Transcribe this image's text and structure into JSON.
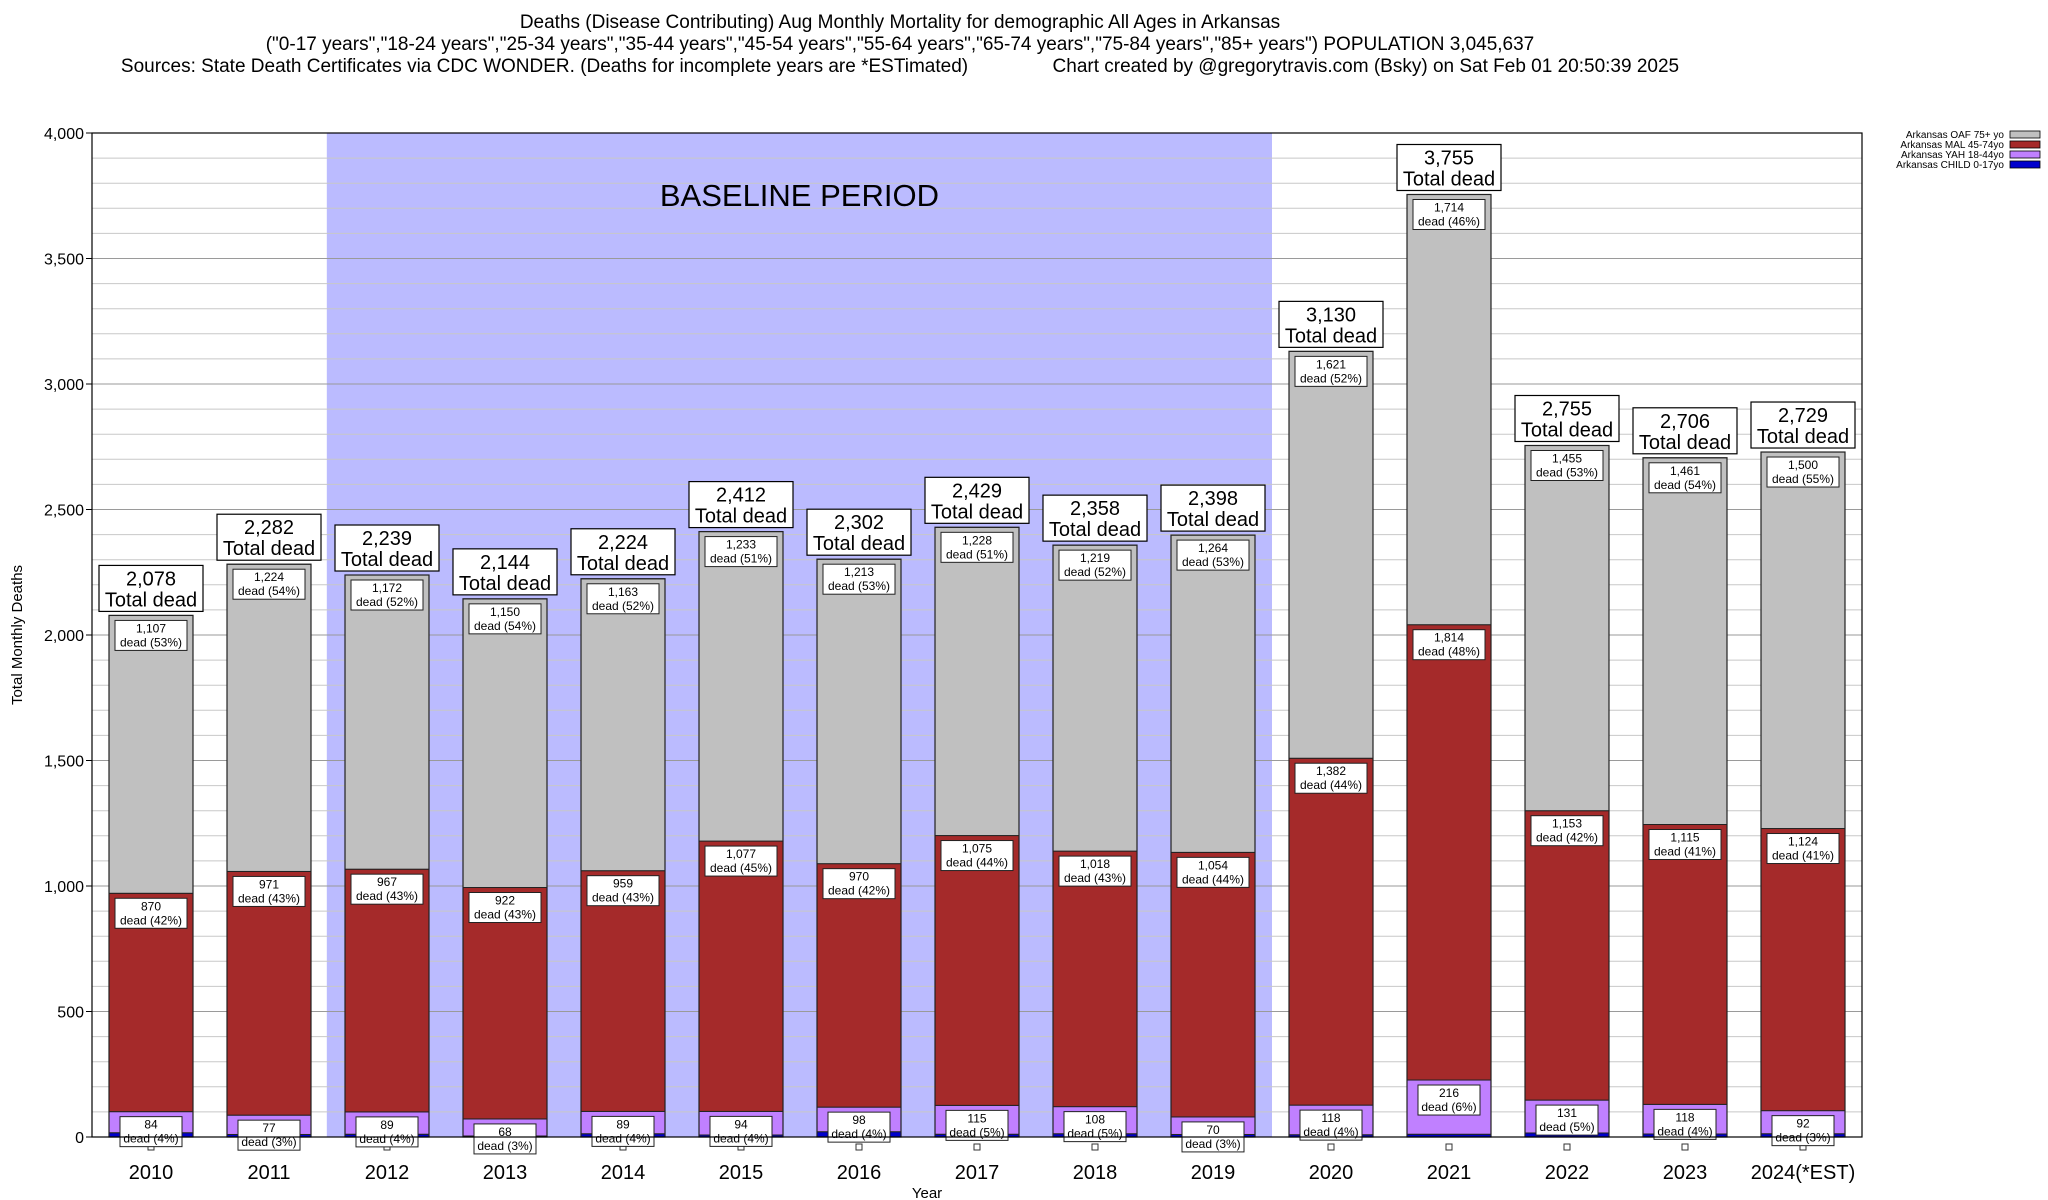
{
  "chart_data": {
    "type": "bar",
    "stacked": true,
    "title_lines": [
      "Deaths (Disease Contributing) Aug Monthly Mortality for demographic All Ages in Arkansas",
      "(\"0-17 years\",\"18-24 years\",\"25-34 years\",\"35-44 years\",\"45-54 years\",\"55-64 years\",\"65-74 years\",\"75-84 years\",\"85+ years\") POPULATION 3,045,637",
      "Sources: State Death Certificates via CDC WONDER. (Deaths for incomplete years are *ESTimated)                Chart created by @gregorytravis.com (Bsky) on Sat Feb 01 20:50:39 2025"
    ],
    "xlabel": "Year",
    "ylabel": "Total Monthly Deaths",
    "ylim": [
      0,
      4000
    ],
    "yticks": [
      0,
      500,
      1000,
      1500,
      2000,
      2500,
      3000,
      3500,
      4000
    ],
    "ytick_labels": [
      "0",
      "500",
      "1,000",
      "1,500",
      "2,000",
      "2,500",
      "3,000",
      "3,500",
      "4,000"
    ],
    "baseline_label": "BASELINE PERIOD",
    "baseline_range": [
      "2012",
      "2019"
    ],
    "total_suffix": "Total dead",
    "categories": [
      "2010",
      "2011",
      "2012",
      "2013",
      "2014",
      "2015",
      "2016",
      "2017",
      "2018",
      "2019",
      "2020",
      "2021",
      "2022",
      "2023",
      "2024(*EST)"
    ],
    "totals": [
      2078,
      2282,
      2239,
      2144,
      2224,
      2412,
      2302,
      2429,
      2358,
      2398,
      3130,
      3755,
      2755,
      2706,
      2729
    ],
    "total_labels": [
      "2,078",
      "2,282",
      "2,239",
      "2,144",
      "2,224",
      "2,412",
      "2,302",
      "2,429",
      "2,358",
      "2,398",
      "3,130",
      "3,755",
      "2,755",
      "2,706",
      "2,729"
    ],
    "series": [
      {
        "name": "Arkansas CHILD 0-17yo",
        "color": "#0000cc",
        "values": [
          17,
          10,
          11,
          4,
          13,
          8,
          21,
          11,
          13,
          10,
          9,
          11,
          16,
          12,
          13
        ]
      },
      {
        "name": "Arkansas YAH 18-44yo",
        "color": "#c080ff",
        "values": [
          84,
          77,
          89,
          68,
          89,
          94,
          98,
          115,
          108,
          70,
          118,
          216,
          131,
          118,
          92
        ],
        "labels": [
          "84",
          "77",
          "89",
          "68",
          "89",
          "94",
          "98",
          "115",
          "108",
          "70",
          "118",
          "216",
          "131",
          "118",
          "92"
        ],
        "pcts": [
          "dead (4%)",
          "dead (3%)",
          "dead (4%)",
          "dead (3%)",
          "dead (4%)",
          "dead (4%)",
          "dead (4%)",
          "dead (5%)",
          "dead (5%)",
          "dead (3%)",
          "dead (4%)",
          "dead (6%)",
          "dead (5%)",
          "dead (4%)",
          "dead (3%)"
        ]
      },
      {
        "name": "Arkansas MAL 45-74yo",
        "color": "#a52a2a",
        "values": [
          870,
          971,
          967,
          922,
          959,
          1077,
          970,
          1075,
          1018,
          1054,
          1382,
          1814,
          1153,
          1115,
          1124
        ],
        "labels": [
          "870",
          "971",
          "967",
          "922",
          "959",
          "1,077",
          "970",
          "1,075",
          "1,018",
          "1,054",
          "1,382",
          "1,814",
          "1,153",
          "1,115",
          "1,124"
        ],
        "pcts": [
          "dead (42%)",
          "dead (43%)",
          "dead (43%)",
          "dead (43%)",
          "dead (43%)",
          "dead (45%)",
          "dead (42%)",
          "dead (44%)",
          "dead (43%)",
          "dead (44%)",
          "dead (44%)",
          "dead (48%)",
          "dead (42%)",
          "dead (41%)",
          "dead (41%)"
        ]
      },
      {
        "name": "Arkansas OAF 75+ yo",
        "color": "#c0c0c0",
        "values": [
          1107,
          1224,
          1172,
          1150,
          1163,
          1233,
          1213,
          1228,
          1219,
          1264,
          1621,
          1714,
          1455,
          1461,
          1500
        ],
        "labels": [
          "1,107",
          "1,224",
          "1,172",
          "1,150",
          "1,163",
          "1,233",
          "1,213",
          "1,228",
          "1,219",
          "1,264",
          "1,621",
          "1,714",
          "1,455",
          "1,461",
          "1,500"
        ],
        "pcts": [
          "dead (53%)",
          "dead (54%)",
          "dead (52%)",
          "dead (54%)",
          "dead (52%)",
          "dead (51%)",
          "dead (53%)",
          "dead (51%)",
          "dead (52%)",
          "dead (53%)",
          "dead (52%)",
          "dead (46%)",
          "dead (53%)",
          "dead (54%)",
          "dead (55%)"
        ]
      }
    ],
    "legend_order": [
      "Arkansas OAF 75+ yo",
      "Arkansas MAL 45-74yo",
      "Arkansas YAH 18-44yo",
      "Arkansas CHILD 0-17yo"
    ],
    "legend_position": "top-right"
  }
}
